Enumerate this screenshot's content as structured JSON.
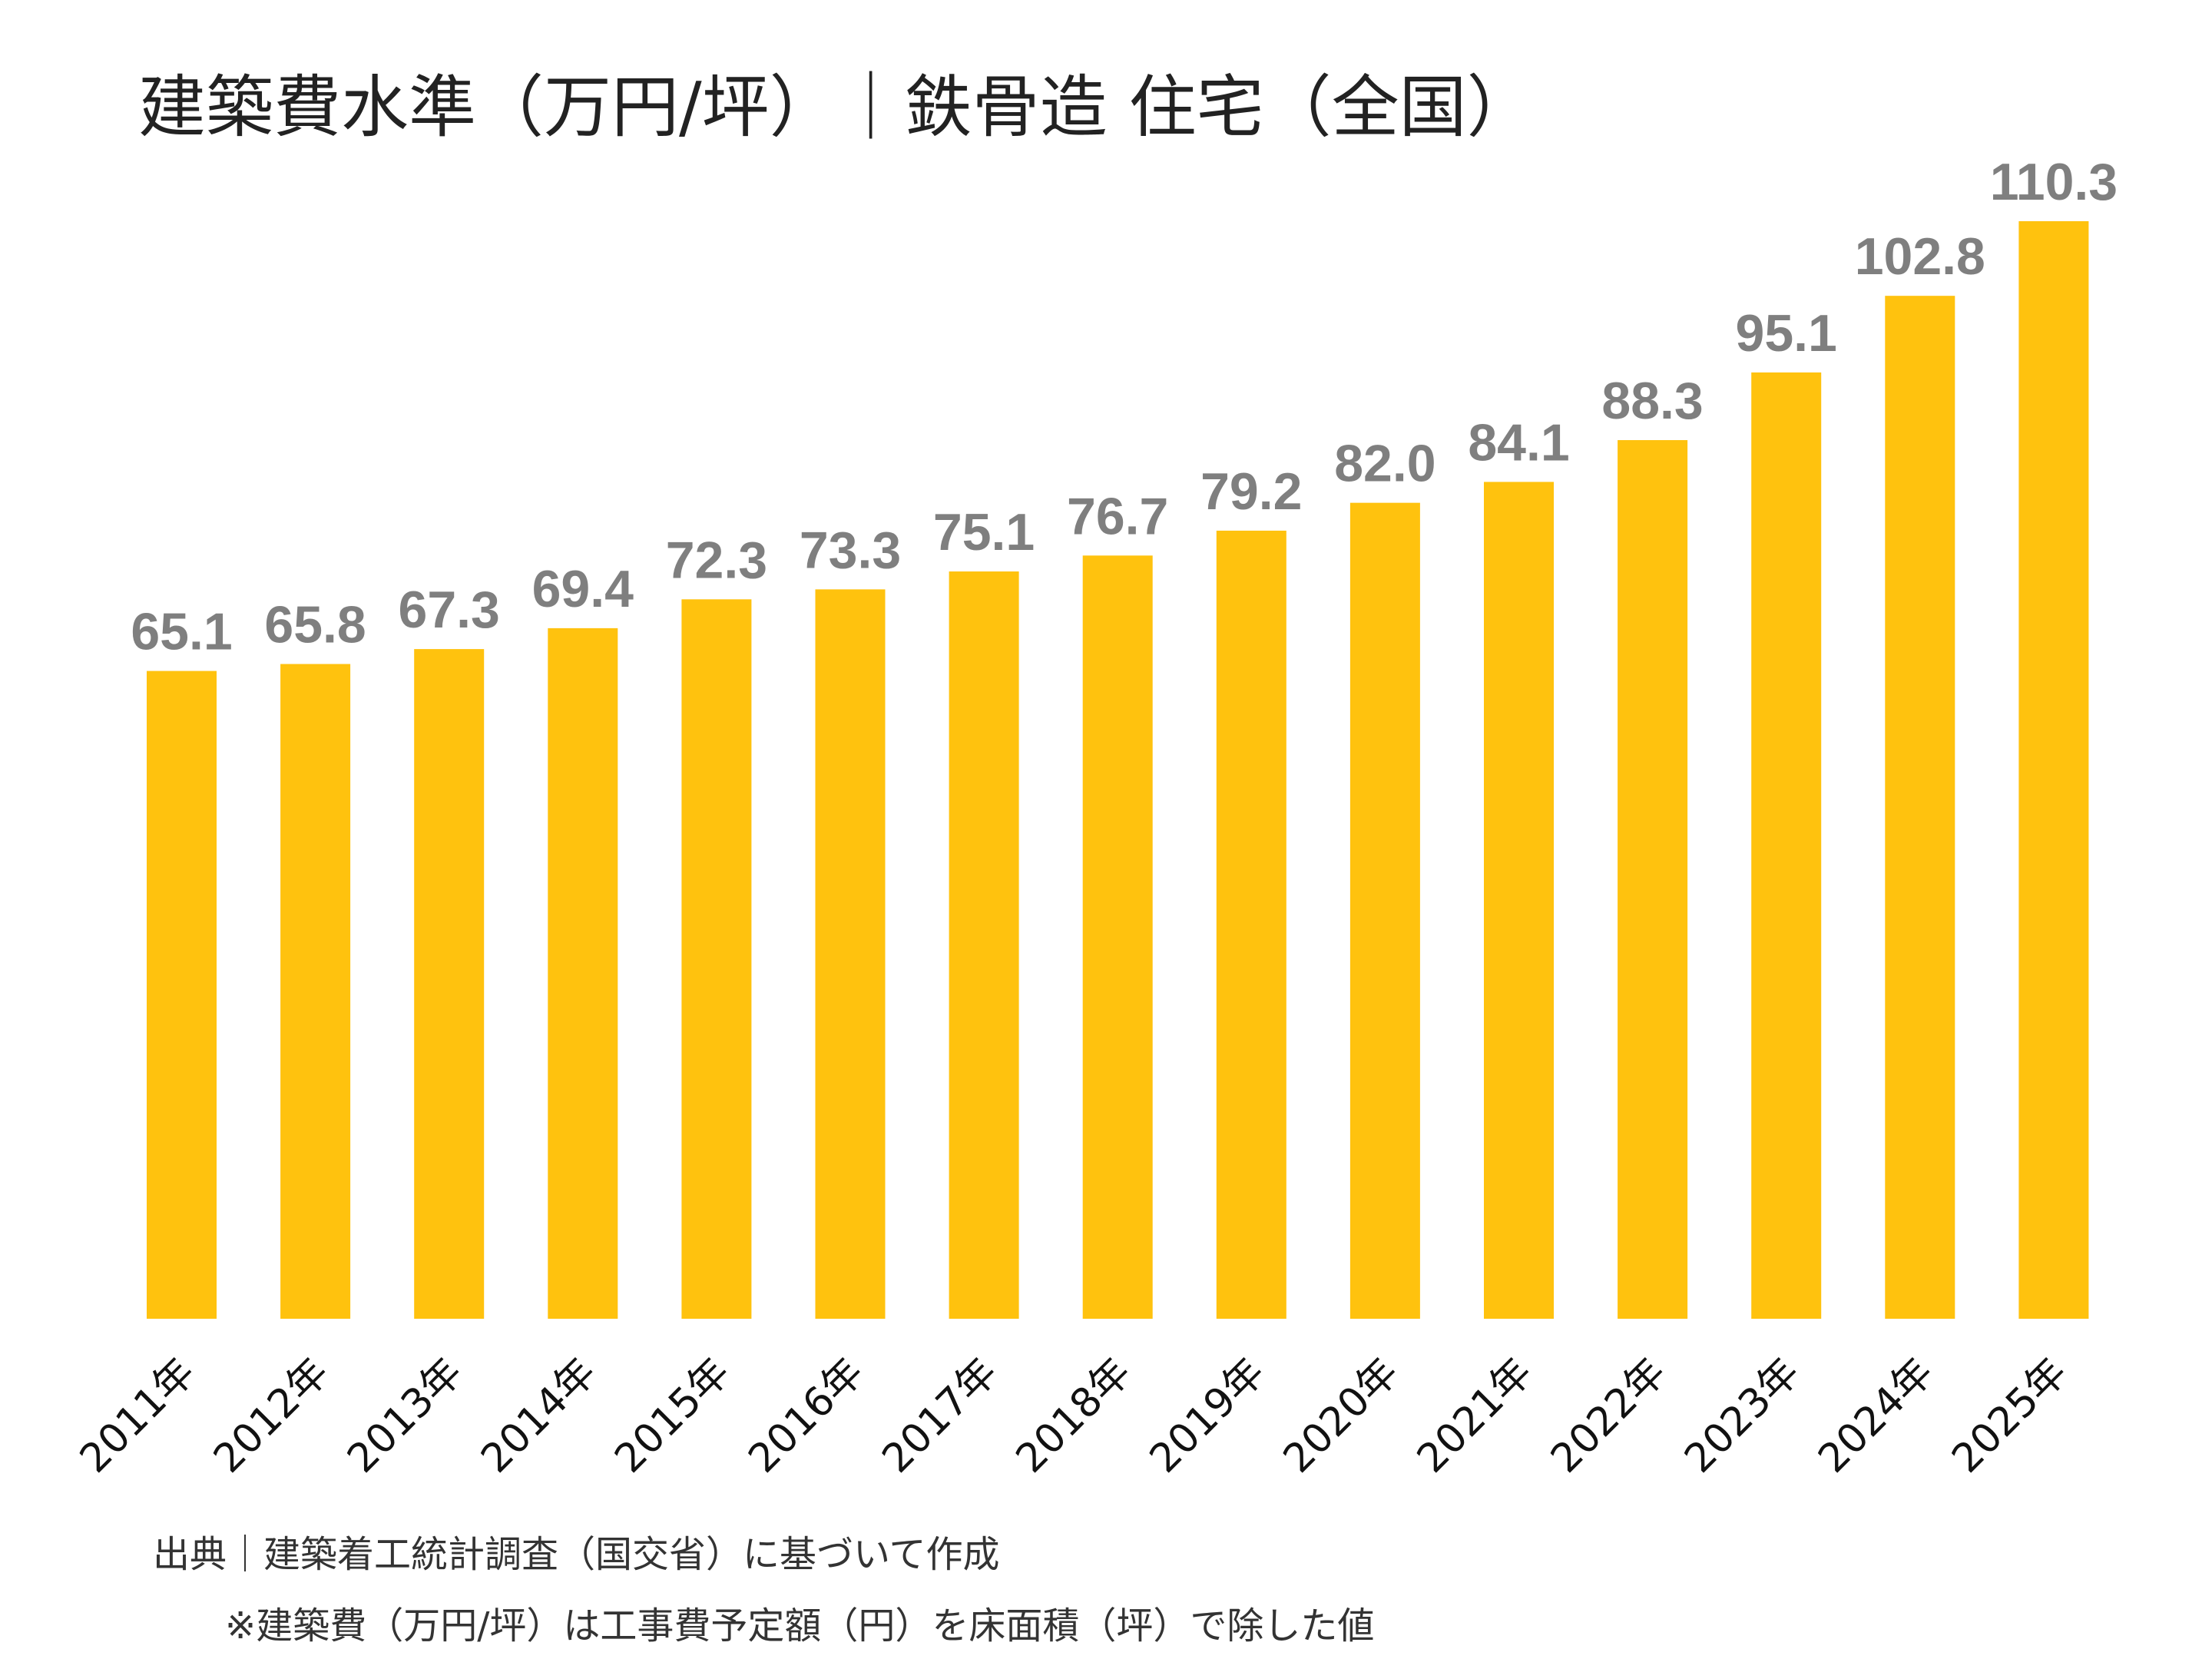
{
  "chart_data": {
    "type": "bar",
    "title": "建築費水準（万円/坪）｜鉄骨造 住宅（全国）",
    "categories": [
      "2011年",
      "2012年",
      "2013年",
      "2014年",
      "2015年",
      "2016年",
      "2017年",
      "2018年",
      "2019年",
      "2020年",
      "2021年",
      "2022年",
      "2023年",
      "2024年",
      "2025年"
    ],
    "values": [
      65.1,
      65.8,
      67.3,
      69.4,
      72.3,
      73.3,
      75.1,
      76.7,
      79.2,
      82.0,
      84.1,
      88.3,
      95.1,
      102.8,
      110.3
    ],
    "value_labels": [
      "65.1",
      "65.8",
      "67.3",
      "69.4",
      "72.3",
      "73.3",
      "75.1",
      "76.7",
      "79.2",
      "82.0",
      "84.1",
      "88.3",
      "95.1",
      "102.8",
      "110.3"
    ],
    "ylim": [
      0,
      110.3
    ],
    "grid": false,
    "bar_color": "#FFC20E",
    "label_color": "#7F7F7F"
  },
  "footer": {
    "source": "出典｜建築着工統計調査（国交省）に基づいて作成",
    "note": "※建築費（万円/坪）は工事費予定額（円）を床面積（坪）で除した値"
  }
}
